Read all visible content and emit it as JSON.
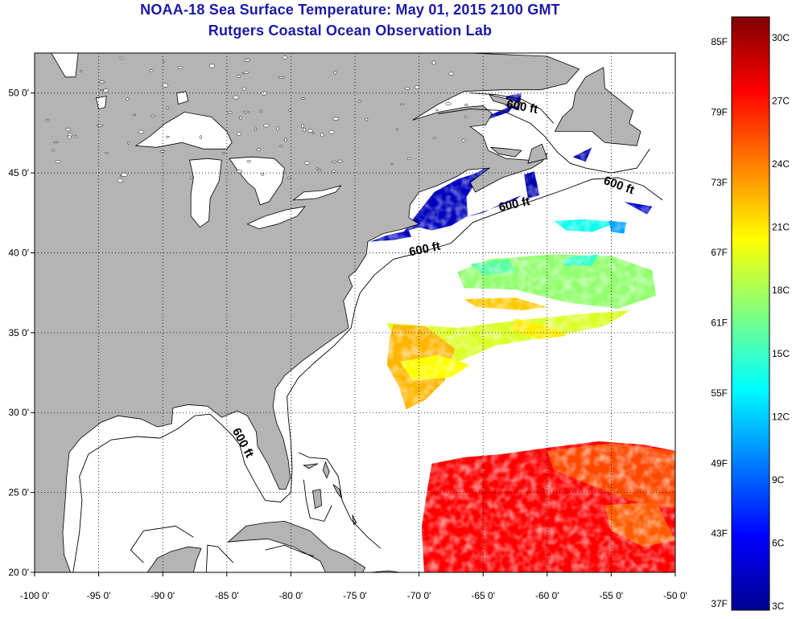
{
  "title": {
    "line1": "NOAA-18 Sea Surface Temperature:  May 01, 2015 2100 GMT",
    "line2": "Rutgers Coastal Ocean Observation Lab"
  },
  "axes": {
    "lon_ticks": [
      "-100 0'",
      "-95 0'",
      "-90 0'",
      "-85 0'",
      "-80 0'",
      "-75 0'",
      "-70 0'",
      "-65 0'",
      "-60 0'",
      "-55 0'",
      "-50 0'"
    ],
    "lon_values": [
      -100,
      -95,
      -90,
      -85,
      -80,
      -75,
      -70,
      -65,
      -60,
      -55,
      -50
    ],
    "lat_ticks": [
      "50 0'",
      "45 0'",
      "40 0'",
      "35 0'",
      "30 0'",
      "25 0'",
      "20 0'"
    ],
    "lat_values": [
      50,
      45,
      40,
      35,
      30,
      25,
      20
    ],
    "lon_range": [
      -100,
      -50
    ],
    "lat_range": [
      20,
      52.5
    ],
    "grid": "dotted"
  },
  "contour_labels": [
    {
      "text": "600 ft",
      "lon": -62.0,
      "lat": 48.9,
      "angle": 10
    },
    {
      "text": "600 ft",
      "lon": -54.5,
      "lat": 44.0,
      "angle": 20
    },
    {
      "text": "600 ft",
      "lon": -62.5,
      "lat": 42.8,
      "angle": -12
    },
    {
      "text": "600 ft",
      "lon": -69.5,
      "lat": 40.0,
      "angle": -12
    },
    {
      "text": "600 ft",
      "lon": -84.0,
      "lat": 28.0,
      "angle": 62
    }
  ],
  "colorbar": {
    "f_labels": [
      "85F",
      "79F",
      "73F",
      "67F",
      "61F",
      "55F",
      "49F",
      "43F",
      "37F"
    ],
    "c_labels": [
      "30C",
      "27C",
      "24C",
      "21C",
      "18C",
      "15C",
      "12C",
      "9C",
      "6C",
      "3C"
    ],
    "range_c": [
      3,
      31
    ],
    "colors": [
      "#00008f",
      "#0000ff",
      "#0080ff",
      "#00ffff",
      "#80ff80",
      "#ffff00",
      "#ff8000",
      "#ff0000",
      "#800000"
    ]
  },
  "colors": {
    "land": "#b4b4b4",
    "water": "#ffffff",
    "title": "#1a1aa6"
  }
}
